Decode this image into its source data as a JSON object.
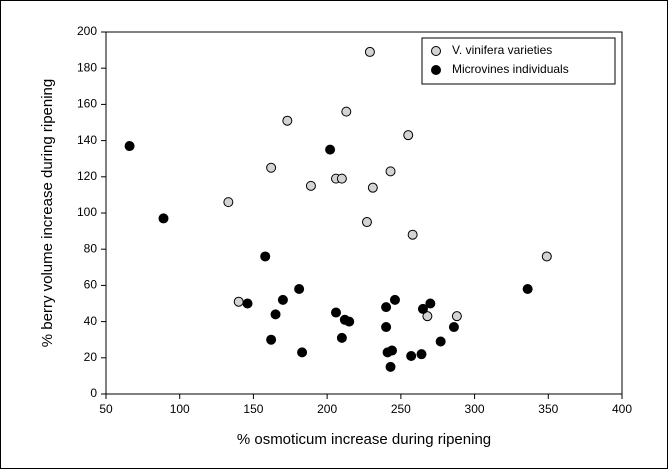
{
  "chart_data": {
    "type": "scatter",
    "xlabel": "% osmoticum increase during ripening",
    "ylabel": "% berry volume increase during ripening",
    "xlim": [
      50,
      400
    ],
    "xticks": [
      50,
      100,
      150,
      200,
      250,
      300,
      350,
      400
    ],
    "ylim": [
      0,
      200
    ],
    "yticks": [
      0,
      20,
      40,
      60,
      80,
      100,
      120,
      140,
      160,
      180,
      200
    ],
    "legend": "upper right",
    "series": [
      {
        "name": "V. vinifera varieties",
        "color": "#d3d3d3",
        "x": [
          229,
          173,
          213,
          255,
          162,
          243,
          206,
          210,
          189,
          231,
          133,
          227,
          258,
          349,
          140,
          268,
          288
        ],
        "values": [
          189,
          151,
          156,
          143,
          125,
          123,
          119,
          119,
          115,
          114,
          106,
          95,
          88,
          76,
          51,
          43,
          43
        ]
      },
      {
        "name": "Microvines individuals",
        "color": "#000000",
        "x": [
          66,
          202,
          89,
          158,
          146,
          170,
          181,
          165,
          162,
          183,
          206,
          212,
          215,
          210,
          240,
          246,
          240,
          241,
          244,
          243,
          257,
          264,
          265,
          270,
          277,
          286,
          336
        ],
        "values": [
          137,
          135,
          97,
          76,
          50,
          52,
          58,
          44,
          30,
          23,
          45,
          41,
          40,
          31,
          48,
          52,
          37,
          23,
          24,
          15,
          21,
          22,
          47,
          50,
          29,
          37,
          58
        ]
      }
    ]
  }
}
